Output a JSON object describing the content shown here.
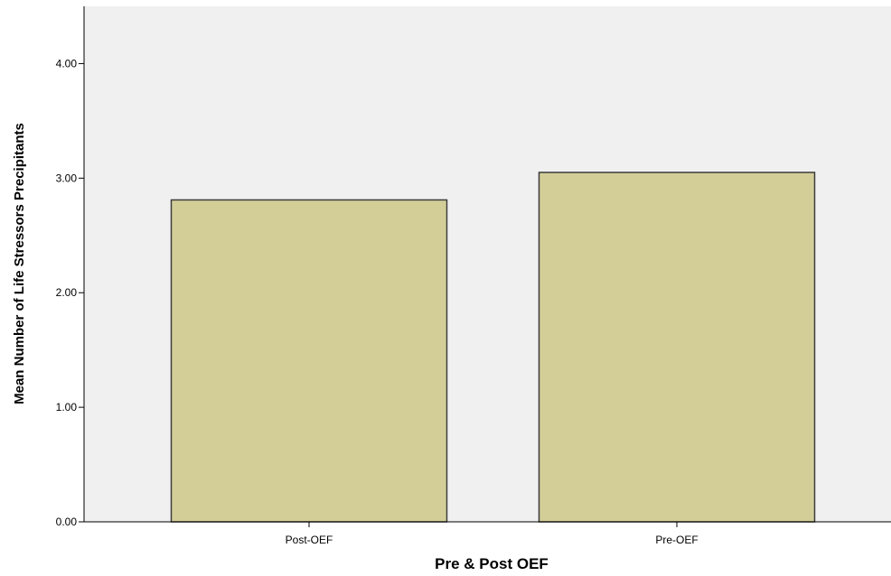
{
  "chart_data": {
    "type": "bar",
    "title": "",
    "xlabel": "Pre & Post OEF",
    "ylabel": "Mean Number of Life Stressors Precipitants",
    "categories": [
      "Post-OEF",
      "Pre-OEF"
    ],
    "values": [
      2.81,
      3.05
    ],
    "ylim": [
      0,
      4.5
    ],
    "yticks": [
      0,
      1,
      2,
      3,
      4
    ],
    "ytick_labels": [
      "0.00",
      "1.00",
      "2.00",
      "3.00",
      "4.00"
    ],
    "grid": false,
    "legend": "none",
    "colors": {
      "plot_background": "#f0f0f0",
      "bar_fill": "#d3ce98",
      "bar_stroke": "#3c3c3c",
      "axis": "#000000"
    }
  }
}
